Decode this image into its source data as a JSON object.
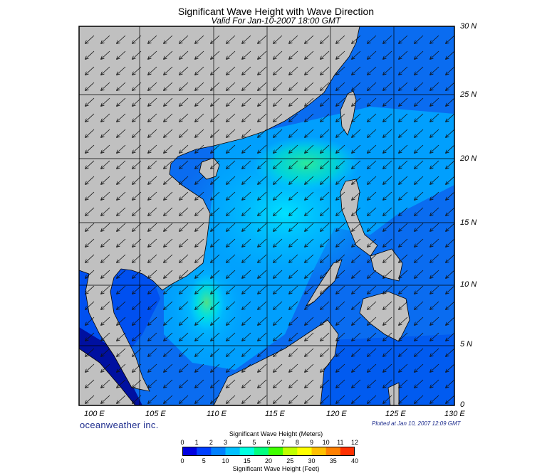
{
  "header": {
    "title": "Significant Wave Height with Wave Direction",
    "subtitle": "Valid For Jan-10-2007 18:00 GMT"
  },
  "map": {
    "lon_range": [
      100,
      130
    ],
    "lat_range": [
      0,
      30
    ],
    "lat_labels": [
      "0",
      "5 N",
      "10 N",
      "15 N",
      "20 N",
      "25 N",
      "30 N"
    ],
    "lon_labels": [
      "100 E",
      "105 E",
      "110 E",
      "115 E",
      "120 E",
      "125 E",
      "130 E"
    ],
    "wave_direction": "from northeast toward southwest",
    "land_color": "#c0c0c0"
  },
  "footer": {
    "brand": "oceanweather inc.",
    "plotted": "Plotted at Jan 10, 2007 12:09 GMT"
  },
  "colorbar": {
    "title_meters": "Significant Wave Height (Meters)",
    "title_feet": "Significant Wave Height (Feet)",
    "meter_ticks": [
      "0",
      "1",
      "2",
      "3",
      "4",
      "5",
      "6",
      "7",
      "8",
      "9",
      "10",
      "11",
      "12"
    ],
    "feet_ticks": [
      "0",
      "5",
      "10",
      "15",
      "20",
      "25",
      "30",
      "35",
      "40"
    ],
    "colors": [
      "#0000e0",
      "#0040ff",
      "#0080ff",
      "#00c0ff",
      "#00ffe0",
      "#00ff80",
      "#40ff00",
      "#c0ff00",
      "#ffff00",
      "#ffc000",
      "#ff8000",
      "#ff3000"
    ]
  }
}
